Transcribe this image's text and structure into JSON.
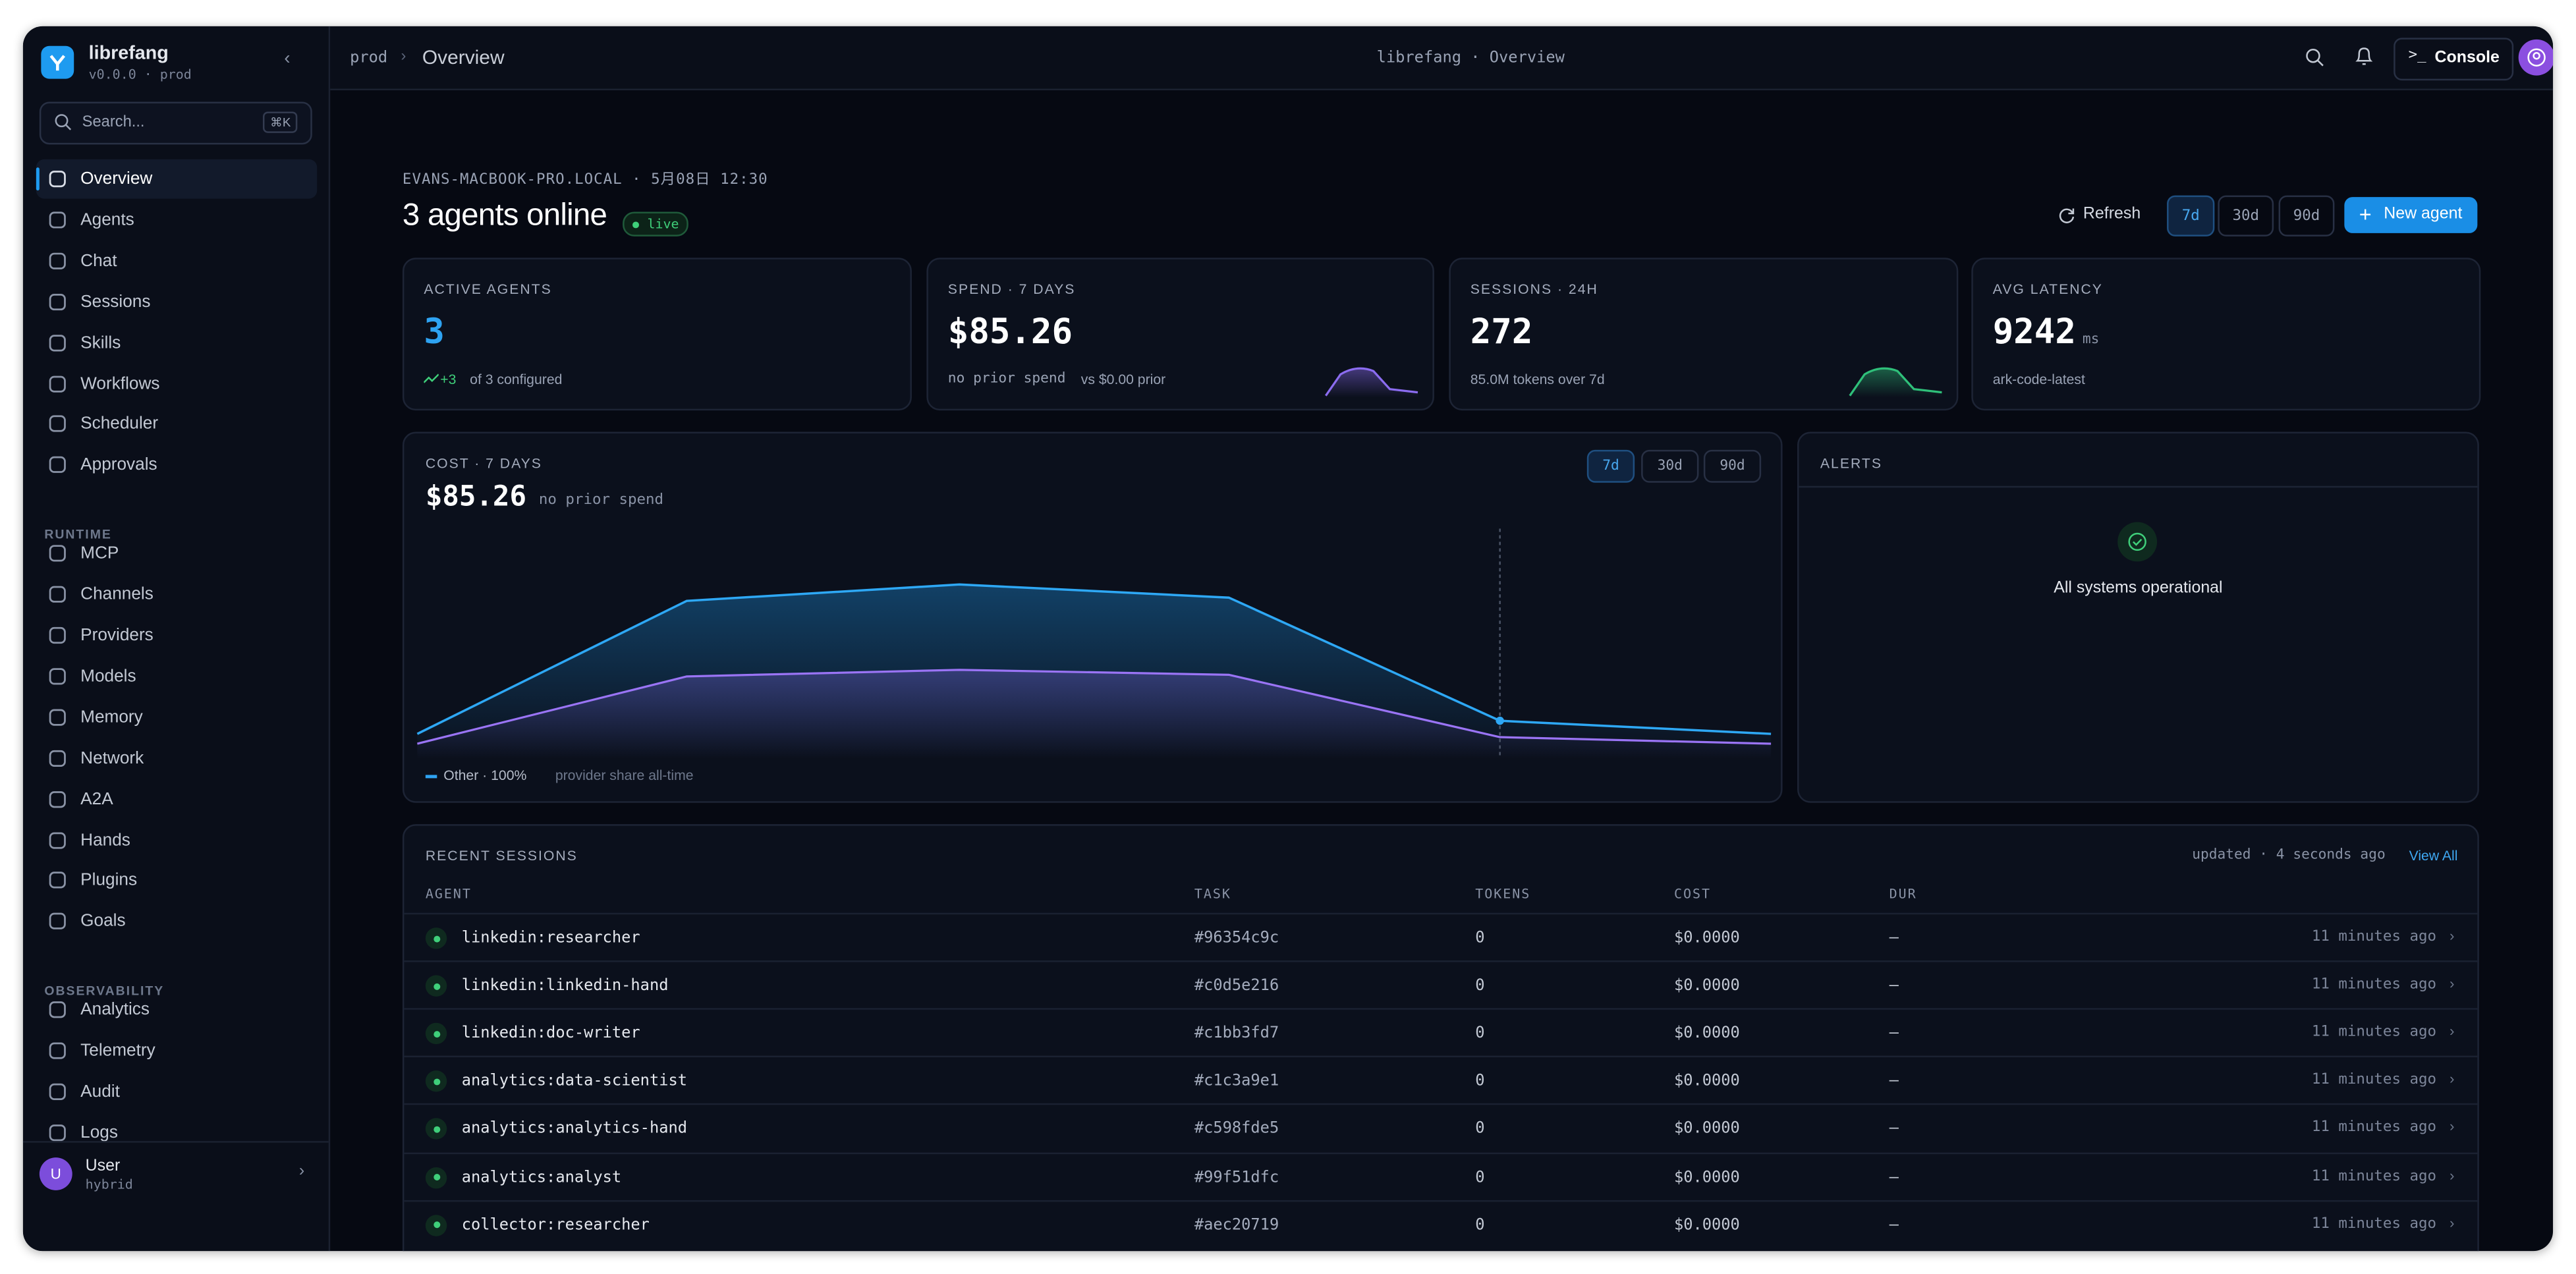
{
  "sidebar": {
    "brand": "librefang",
    "version": "v0.0.0 · prod",
    "search": "Search...",
    "shortcut": "⌘K",
    "groups": [
      {
        "items": [
          "Overview",
          "Agents",
          "Chat",
          "Sessions",
          "Skills",
          "Workflows",
          "Scheduler",
          "Approvals"
        ]
      },
      {
        "title": "RUNTIME",
        "items": [
          "MCP",
          "Channels",
          "Providers",
          "Models",
          "Memory",
          "Network",
          "A2A",
          "Hands",
          "Plugins",
          "Goals"
        ]
      },
      {
        "title": "OBSERVABILITY",
        "items": [
          "Analytics",
          "Telemetry",
          "Audit",
          "Logs"
        ]
      }
    ],
    "user": {
      "avatar": "U",
      "name": "User",
      "mode": "hybrid"
    }
  },
  "topbar": {
    "crumb": "prod",
    "page": "Overview",
    "center": "librefang · Overview",
    "console": "Console"
  },
  "header": {
    "host": "EVANS-MACBOOK-PRO.LOCAL · 5月08日 12:30",
    "title": "3 agents online",
    "badge": "live",
    "refresh": "Refresh",
    "ranges": [
      "7d",
      "30d",
      "90d"
    ],
    "new_agent": "New agent"
  },
  "stats": [
    {
      "label": "ACTIVE AGENTS",
      "value": "3",
      "delta": "+3",
      "note": "of 3 configured"
    },
    {
      "label": "SPEND · 7 DAYS",
      "value": "$85.26",
      "note": "no prior spend",
      "note2": "vs $0.00 prior"
    },
    {
      "label": "SESSIONS · 24H",
      "value": "272",
      "note": "85.0M tokens over 7d"
    },
    {
      "label": "AVG LATENCY",
      "value": "9242",
      "unit": "ms",
      "note": "ark-code-latest"
    }
  ],
  "cost": {
    "label": "COST · 7 DAYS",
    "value": "$85.26",
    "note": "no prior spend",
    "ranges": [
      "7d",
      "30d",
      "90d"
    ],
    "legend": "Other · 100%",
    "legend_note": "provider share all-time"
  },
  "alerts": {
    "title": "ALERTS",
    "message": "All systems operational"
  },
  "sessions": {
    "title": "RECENT SESSIONS",
    "updated": "updated · 4 seconds ago",
    "view_all": "View All",
    "columns": [
      "AGENT",
      "TASK",
      "TOKENS",
      "COST",
      "DUR"
    ],
    "rows": [
      [
        "linkedin:researcher",
        "#96354c9c",
        "0",
        "$0.0000",
        "—",
        "11 minutes ago"
      ],
      [
        "linkedin:linkedin-hand",
        "#c0d5e216",
        "0",
        "$0.0000",
        "—",
        "11 minutes ago"
      ],
      [
        "linkedin:doc-writer",
        "#c1bb3fd7",
        "0",
        "$0.0000",
        "—",
        "11 minutes ago"
      ],
      [
        "analytics:data-scientist",
        "#c1c3a9e1",
        "0",
        "$0.0000",
        "—",
        "11 minutes ago"
      ],
      [
        "analytics:analytics-hand",
        "#c598fde5",
        "0",
        "$0.0000",
        "—",
        "11 minutes ago"
      ],
      [
        "analytics:analyst",
        "#99f51dfc",
        "0",
        "$0.0000",
        "—",
        "11 minutes ago"
      ],
      [
        "collector:researcher",
        "#aec20719",
        "0",
        "$0.0000",
        "—",
        "11 minutes ago"
      ]
    ]
  }
}
